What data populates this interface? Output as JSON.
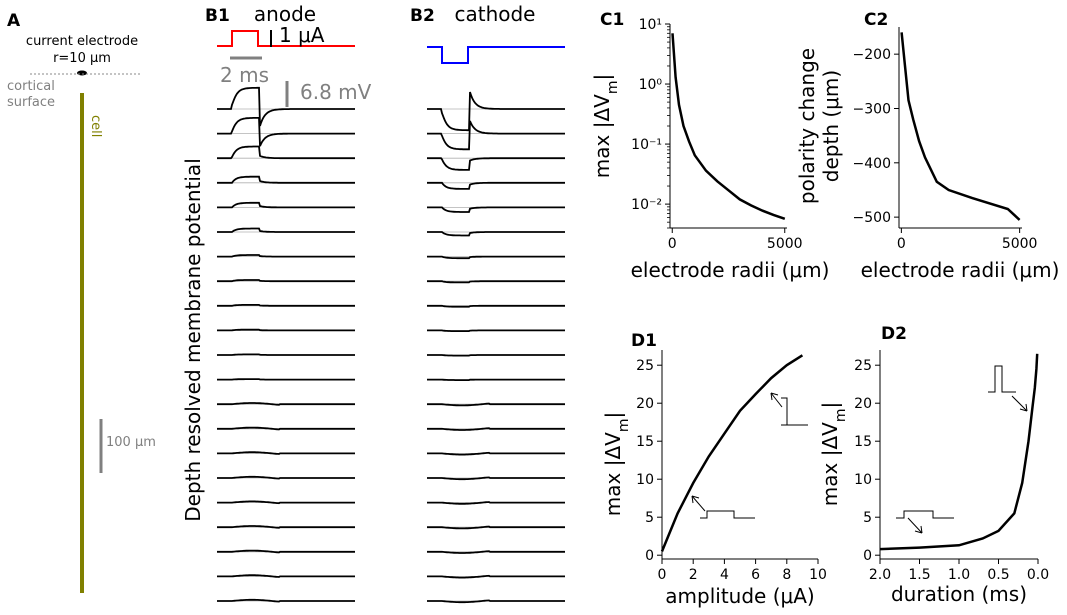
{
  "panel_a": {
    "panel_label": "A",
    "electrode_label_1": "current electrode",
    "electrode_label_2": "r=10 μm",
    "surface_label_1": "cortical",
    "surface_label_2": "surface",
    "cell_label": "cell",
    "scale_label": "100 μm",
    "cell_color": "#808000",
    "scale_color": "#808080"
  },
  "panel_b1": {
    "panel_label": "B1",
    "title": "anode",
    "current_scale_label": "1 μA",
    "time_scale_label": "2 ms",
    "voltage_scale_label": "6.8 mV",
    "stimulus_color": "#ff0000"
  },
  "panel_b2": {
    "panel_label": "B2",
    "title": "cathode",
    "stimulus_color": "#0000ff"
  },
  "ylabel_b": "Depth resolved membrane potential",
  "panel_c1": {
    "panel_label": "C1"
  },
  "panel_c2": {
    "panel_label": "C2"
  },
  "panel_d1": {
    "panel_label": "D1"
  },
  "panel_d2": {
    "panel_label": "D2"
  },
  "chart_data": [
    {
      "id": "C1",
      "type": "line",
      "xlabel": "electrode radii (μm)",
      "ylabel": "max |ΔV_m|",
      "yscale": "log",
      "xlim": [
        -100,
        5100
      ],
      "ylim": [
        0.004,
        10
      ],
      "x_ticks": [
        0,
        5000
      ],
      "y_ticks": [
        {
          "value": 0.01,
          "label": "10⁻²"
        },
        {
          "value": 0.1,
          "label": "10⁻¹"
        },
        {
          "value": 1,
          "label": "10⁰"
        },
        {
          "value": 10,
          "label": "10¹"
        }
      ],
      "x": [
        10,
        150,
        300,
        500,
        750,
        1000,
        1500,
        2000,
        2500,
        3000,
        3500,
        4000,
        4500,
        5000
      ],
      "y": [
        7.0,
        1.3,
        0.45,
        0.2,
        0.11,
        0.065,
        0.036,
        0.024,
        0.017,
        0.012,
        0.0095,
        0.0078,
        0.0066,
        0.0057
      ],
      "color": "#000000"
    },
    {
      "id": "C2",
      "type": "line",
      "xlabel": "electrode radii (μm)",
      "ylabel": "polarity change depth (μm)",
      "xlim": [
        -100,
        5100
      ],
      "ylim": [
        -520,
        -150
      ],
      "x_ticks": [
        0,
        5000
      ],
      "y_ticks": [
        -200,
        -300,
        -400,
        -500
      ],
      "x": [
        10,
        150,
        300,
        500,
        750,
        1000,
        1500,
        2000,
        3000,
        4500,
        5000
      ],
      "y": [
        -160,
        -220,
        -285,
        -320,
        -360,
        -390,
        -435,
        -450,
        -465,
        -485,
        -505
      ],
      "color": "#000000"
    },
    {
      "id": "D1",
      "type": "line",
      "xlabel": "amplitude (μA)",
      "ylabel": "max |ΔV_m|",
      "xlim": [
        0,
        10
      ],
      "ylim": [
        -0.5,
        27
      ],
      "x_ticks": [
        0,
        2,
        4,
        6,
        8,
        10
      ],
      "y_ticks": [
        0,
        5,
        10,
        15,
        20,
        25
      ],
      "x": [
        0,
        0.5,
        1,
        1.5,
        2,
        3,
        4,
        5,
        6,
        7,
        8,
        9
      ],
      "y": [
        0.5,
        3,
        5.5,
        7.5,
        9.5,
        13,
        16,
        19,
        21.2,
        23.3,
        25,
        26.3
      ],
      "color": "#000000"
    },
    {
      "id": "D2",
      "type": "line",
      "xlabel": "duration (ms)",
      "ylabel": "max |ΔV_m|",
      "x_reversed": true,
      "xlim": [
        2.0,
        0.0
      ],
      "ylim": [
        -0.5,
        27
      ],
      "x_ticks": [
        {
          "value": 2.0,
          "label": "2.0"
        },
        {
          "value": 1.5,
          "label": "1.5"
        },
        {
          "value": 1.0,
          "label": "1.0"
        },
        {
          "value": 0.5,
          "label": "0.5"
        },
        {
          "value": 0.0,
          "label": "0.0"
        }
      ],
      "y_ticks": [
        0,
        5,
        10,
        15,
        20,
        25
      ],
      "x": [
        2.0,
        1.5,
        1.0,
        0.7,
        0.5,
        0.3,
        0.2,
        0.12,
        0.07,
        0.04,
        0.02,
        0.01
      ],
      "y": [
        0.8,
        1.0,
        1.3,
        2.2,
        3.2,
        5.5,
        9.5,
        15,
        19.5,
        22,
        24.5,
        26.5
      ],
      "color": "#000000"
    }
  ]
}
